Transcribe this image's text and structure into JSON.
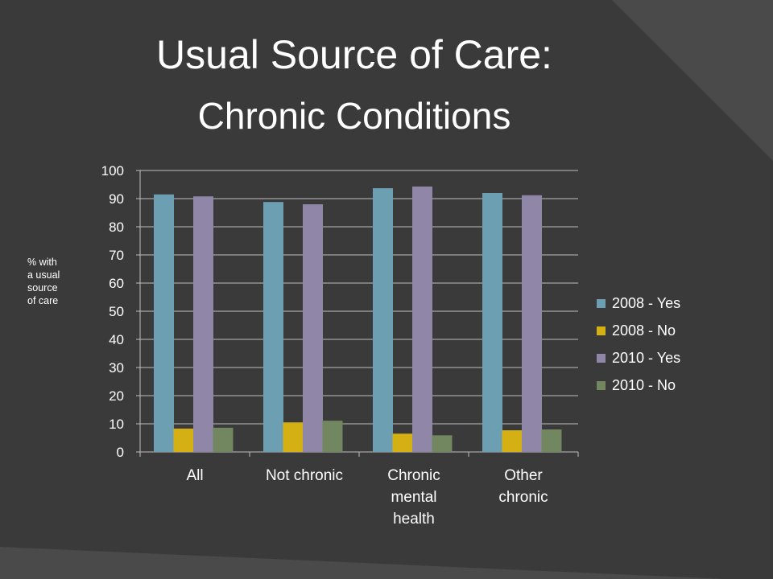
{
  "slide": {
    "title_line1": "Usual Source of Care:",
    "title_line2": "Chronic Conditions"
  },
  "colors": {
    "background": "#3a3a3a",
    "decor_stripe": "#4a4a4a",
    "text": "#ffffff",
    "gridline": "#bfbfbf",
    "series": [
      "#6c9fb1",
      "#d4b014",
      "#8f86a8",
      "#728760"
    ]
  },
  "chart_data": {
    "type": "bar",
    "title": "",
    "xlabel": "",
    "ylabel": "% with a usual source of care",
    "ylabel_lines": [
      "% with",
      "a usual",
      "source",
      "of care"
    ],
    "categories": [
      "All",
      "Not chronic",
      "Chronic mental health",
      "Other chronic"
    ],
    "category_label_lines": [
      [
        "All"
      ],
      [
        "Not chronic"
      ],
      [
        "Chronic",
        "mental",
        "health"
      ],
      [
        "Other",
        "chronic"
      ]
    ],
    "series": [
      {
        "name": "2008 - Yes",
        "values": [
          91.5,
          88.8,
          93.7,
          92.0
        ]
      },
      {
        "name": "2008 - No",
        "values": [
          8.3,
          10.5,
          6.5,
          7.7
        ]
      },
      {
        "name": "2010 - Yes",
        "values": [
          90.8,
          88.0,
          94.3,
          91.2
        ]
      },
      {
        "name": "2010 - No",
        "values": [
          8.6,
          11.1,
          5.9,
          8.0
        ]
      }
    ],
    "ylim": [
      0,
      100
    ],
    "yticks": [
      0,
      10,
      20,
      30,
      40,
      50,
      60,
      70,
      80,
      90,
      100
    ],
    "grid": true,
    "legend": "right"
  }
}
